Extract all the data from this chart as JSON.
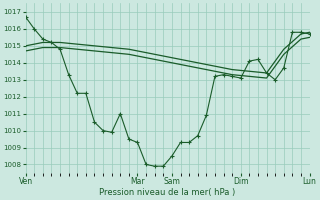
{
  "background_color": "#cce8e0",
  "grid_color": "#99ccbb",
  "line_color": "#1a5c2a",
  "xlabel": "Pression niveau de la mer( hPa )",
  "ylim": [
    1007.5,
    1017.5
  ],
  "yticks": [
    1008,
    1009,
    1010,
    1011,
    1012,
    1013,
    1014,
    1015,
    1016,
    1017
  ],
  "day_labels": [
    "Ven",
    "Mar",
    "Sam",
    "Dim",
    "Lun"
  ],
  "day_positions": [
    0,
    13,
    17,
    25,
    33
  ],
  "smooth_upper_x": [
    0,
    2,
    4,
    6,
    8,
    10,
    12,
    14,
    16,
    18,
    20,
    22,
    24,
    26,
    28,
    30,
    32,
    33
  ],
  "smooth_upper_y": [
    1015.0,
    1015.2,
    1015.2,
    1015.1,
    1015.0,
    1014.9,
    1014.8,
    1014.6,
    1014.4,
    1014.2,
    1014.0,
    1013.8,
    1013.6,
    1013.5,
    1013.4,
    1014.8,
    1015.7,
    1015.8
  ],
  "smooth_lower_x": [
    0,
    2,
    4,
    6,
    8,
    10,
    12,
    14,
    16,
    18,
    20,
    22,
    24,
    26,
    28,
    30,
    32,
    33
  ],
  "smooth_lower_y": [
    1014.7,
    1014.9,
    1014.9,
    1014.8,
    1014.7,
    1014.6,
    1014.5,
    1014.3,
    1014.1,
    1013.9,
    1013.7,
    1013.5,
    1013.3,
    1013.2,
    1013.1,
    1014.5,
    1015.4,
    1015.5
  ],
  "jagged_x": [
    0,
    1,
    2,
    3,
    4,
    5,
    6,
    7,
    8,
    9,
    10,
    11,
    12,
    13,
    14,
    15,
    16,
    17,
    18,
    19,
    20,
    21,
    22,
    23,
    24,
    25,
    26,
    27,
    28,
    29,
    30,
    31,
    32,
    33
  ],
  "jagged_y": [
    1016.7,
    1016.0,
    1015.4,
    1015.2,
    1014.8,
    1013.3,
    1012.2,
    1012.2,
    1010.5,
    1010.0,
    1009.9,
    1011.0,
    1009.5,
    1009.3,
    1008.0,
    1007.9,
    1007.9,
    1008.5,
    1009.3,
    1009.3,
    1009.7,
    1010.9,
    1013.2,
    1013.3,
    1013.2,
    1013.1,
    1014.1,
    1014.2,
    1013.4,
    1013.0,
    1013.7,
    1015.8,
    1015.8,
    1015.7
  ]
}
